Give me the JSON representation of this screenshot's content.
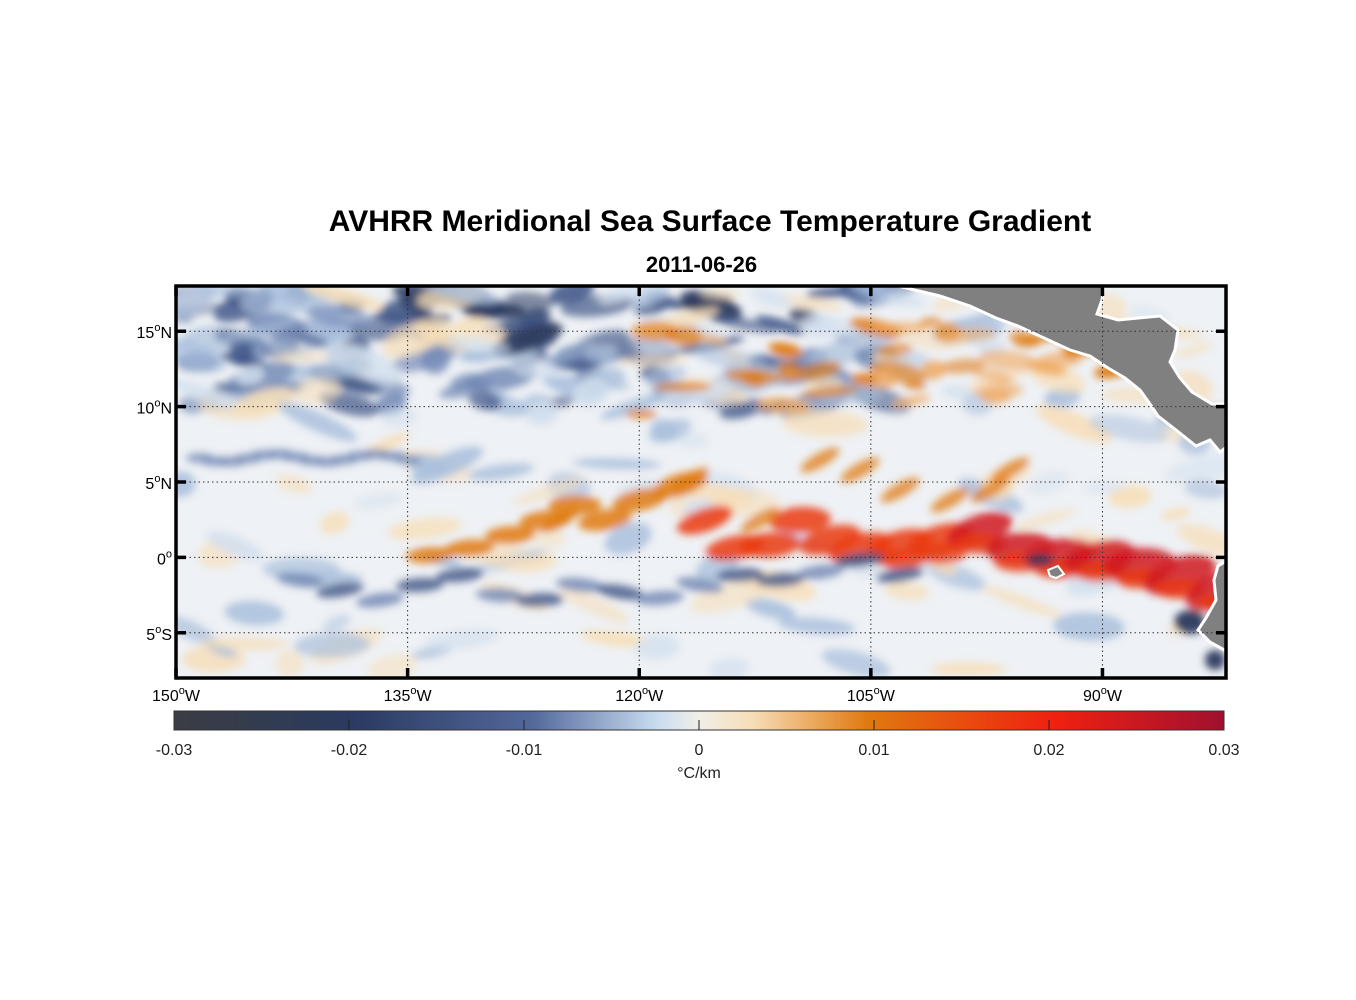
{
  "title": "AVHRR Meridional Sea Surface Temperature Gradient",
  "subtitle": "2011-06-26",
  "map": {
    "lon_range": [
      -150,
      -82
    ],
    "lat_range": [
      -8,
      18
    ],
    "lon_ticks": [
      {
        "value": -150,
        "num": "150",
        "deg": "o",
        "hem": "W"
      },
      {
        "value": -135,
        "num": "135",
        "deg": "o",
        "hem": "W"
      },
      {
        "value": -120,
        "num": "120",
        "deg": "o",
        "hem": "W"
      },
      {
        "value": -105,
        "num": "105",
        "deg": "o",
        "hem": "W"
      },
      {
        "value": -90,
        "num": "90",
        "deg": "o",
        "hem": "W"
      }
    ],
    "lat_ticks": [
      {
        "value": 15,
        "num": "15",
        "deg": "o",
        "hem": "N"
      },
      {
        "value": 10,
        "num": "10",
        "deg": "o",
        "hem": "N"
      },
      {
        "value": 5,
        "num": "5",
        "deg": "o",
        "hem": "N"
      },
      {
        "value": 0,
        "num": "0",
        "deg": "o",
        "hem": ""
      },
      {
        "value": -5,
        "num": "5",
        "deg": "o",
        "hem": "S"
      }
    ],
    "land_color": "#808080",
    "gridlines": "dotted"
  },
  "colorbar": {
    "min": -0.03,
    "max": 0.03,
    "ticks": [
      "-0.03",
      "-0.02",
      "-0.01",
      "0",
      "0.01",
      "0.02",
      "0.03"
    ],
    "unit_label": "°C/km",
    "colors": [
      "#3a3d42",
      "#2a3a60",
      "#52679a",
      "#c8dcf0",
      "#f1efe9",
      "#f7deb8",
      "#e07a10",
      "#f02010",
      "#a01030"
    ]
  }
}
